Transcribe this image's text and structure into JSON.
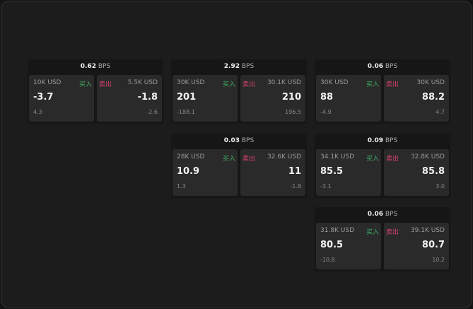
{
  "labels": {
    "buy": "买入",
    "sell": "卖出",
    "unit": "BPS"
  },
  "colors": {
    "buy": "#3fae62",
    "sell": "#d8426c"
  },
  "cards": [
    {
      "spread": "0.62",
      "buy": {
        "size": "10K USD",
        "price": "-3.7",
        "change": "4.3"
      },
      "sell": {
        "size": "5.5K USD",
        "price": "-1.8",
        "change": "-2.6"
      }
    },
    {
      "spread": "2.92",
      "buy": {
        "size": "30K USD",
        "price": "201",
        "change": "-188.1"
      },
      "sell": {
        "size": "30.1K USD",
        "price": "210",
        "change": "196.5"
      }
    },
    {
      "spread": "0.06",
      "buy": {
        "size": "30K USD",
        "price": "88",
        "change": "-4.9"
      },
      "sell": {
        "size": "30K USD",
        "price": "88.2",
        "change": "4.7"
      }
    },
    {
      "spread": "0.03",
      "buy": {
        "size": "28K USD",
        "price": "10.9",
        "change": "1.3"
      },
      "sell": {
        "size": "32.6K USD",
        "price": "11",
        "change": "-1.8"
      }
    },
    {
      "spread": "0.09",
      "buy": {
        "size": "34.1K USD",
        "price": "85.5",
        "change": "-3.1"
      },
      "sell": {
        "size": "32.8K USD",
        "price": "85.8",
        "change": "3.0"
      }
    },
    {
      "spread": "0.06",
      "buy": {
        "size": "31.8K USD",
        "price": "80.5",
        "change": "-10.8"
      },
      "sell": {
        "size": "39.1K USD",
        "price": "80.7",
        "change": "10.2"
      }
    }
  ]
}
